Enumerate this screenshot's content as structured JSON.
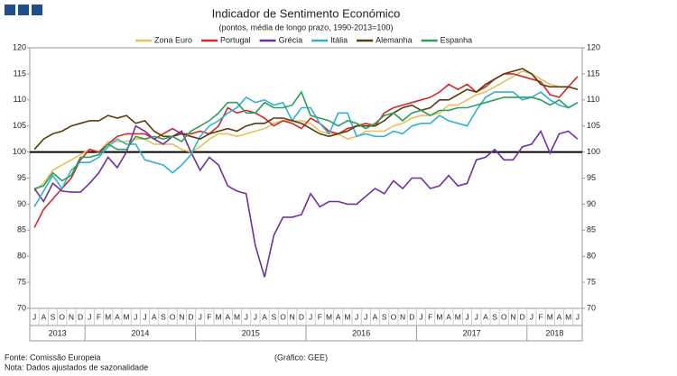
{
  "chart_data": {
    "type": "line",
    "title": "Indicador de Sentimento Económico",
    "subtitle": "(pontos, média de longo prazo, 1990-2013=100)",
    "categories": [
      "J",
      "A",
      "S",
      "O",
      "N",
      "D",
      "J",
      "F",
      "M",
      "A",
      "M",
      "J",
      "J",
      "A",
      "S",
      "O",
      "N",
      "D",
      "J",
      "F",
      "M",
      "A",
      "M",
      "J",
      "J",
      "A",
      "S",
      "O",
      "N",
      "D",
      "J",
      "F",
      "M",
      "A",
      "M",
      "J",
      "J",
      "A",
      "S",
      "O",
      "N",
      "D",
      "J",
      "F",
      "M",
      "A",
      "M",
      "J",
      "J",
      "A",
      "S",
      "O",
      "N",
      "D",
      "J",
      "F",
      "M",
      "A",
      "M",
      "J"
    ],
    "years": [
      "2013",
      "2014",
      "2015",
      "2016",
      "2017",
      "2018"
    ],
    "series": [
      {
        "name": "Zona Euro",
        "color": "#e8c05a",
        "values": [
          92.5,
          94,
          96.5,
          97.5,
          98.5,
          99.5,
          100.5,
          100,
          102,
          102,
          102,
          102.5,
          102.5,
          101.5,
          101.5,
          101.5,
          100.5,
          100,
          101,
          102.5,
          103.5,
          103.5,
          103,
          103.5,
          104,
          104.5,
          105.5,
          106,
          106,
          106,
          105.5,
          104,
          103.5,
          103.5,
          102.5,
          103,
          104,
          104,
          104,
          105,
          105.5,
          106.5,
          107,
          107,
          107.5,
          109,
          109,
          110,
          111,
          111.5,
          112.5,
          113.5,
          114.5,
          115.5,
          115,
          114,
          113,
          112.5,
          112.5,
          112
        ]
      },
      {
        "name": "Portugal",
        "color": "#d62828",
        "values": [
          85.5,
          89,
          91,
          93,
          95,
          98.5,
          100.5,
          100,
          101.5,
          103,
          103.5,
          103.5,
          103.5,
          102.5,
          103.5,
          104.5,
          103.5,
          103.5,
          104,
          103.5,
          105,
          108.5,
          107.5,
          108,
          107.5,
          106.5,
          105,
          106,
          105.5,
          104.5,
          106.5,
          105.5,
          104,
          103.5,
          104.5,
          105,
          105.5,
          105,
          107.5,
          108.5,
          109,
          109.5,
          110,
          110.5,
          111.5,
          113,
          112,
          113,
          111.5,
          112.5,
          114,
          115,
          115,
          114.5,
          114,
          113.5,
          111,
          110.5,
          112.5,
          114.5
        ]
      },
      {
        "name": "Grécia",
        "color": "#7030a0",
        "values": [
          93,
          90.5,
          94,
          92.5,
          92.3,
          92.3,
          94,
          96,
          99,
          97,
          100,
          105,
          104,
          102.5,
          101.5,
          103,
          104,
          100,
          96.5,
          99,
          97.5,
          93.5,
          92.5,
          92,
          82,
          76,
          84,
          87.5,
          87.5,
          88,
          92,
          89.5,
          90.5,
          90.5,
          90,
          90,
          91.5,
          93,
          92,
          94.5,
          93,
          95,
          95,
          93,
          93.5,
          95.5,
          93.5,
          94,
          98.5,
          99,
          100.5,
          98.5,
          98.5,
          101,
          101.5,
          104,
          99.8,
          103.5,
          104,
          102.5
        ]
      },
      {
        "name": "Itália",
        "color": "#30b0d8",
        "values": [
          89.5,
          92.5,
          95.5,
          93,
          96.5,
          98,
          98,
          99,
          101,
          102.5,
          101.5,
          101.5,
          98.5,
          98,
          97.5,
          96,
          97.5,
          99.5,
          103,
          105,
          106,
          107.5,
          108.5,
          110.5,
          109.5,
          110,
          109,
          109.5,
          106,
          108.5,
          108.5,
          105.5,
          103.5,
          107.5,
          107.5,
          103,
          103.5,
          103,
          103,
          104,
          103.5,
          105,
          105.5,
          105.5,
          107,
          106,
          105.5,
          105,
          108,
          110.5,
          111.5,
          111.5,
          111.5,
          110,
          110.5,
          111.5,
          110,
          109,
          108.5,
          109.5
        ]
      },
      {
        "name": "Alemanha",
        "color": "#5a3a10",
        "values": [
          100.5,
          102.5,
          103.5,
          104,
          105,
          105.5,
          106,
          106,
          107,
          106.5,
          107,
          105.5,
          106,
          104,
          103,
          103,
          103.5,
          103,
          102.5,
          103.5,
          104,
          104.5,
          104,
          105,
          105.5,
          105.5,
          106.5,
          106.5,
          106,
          105.5,
          104.5,
          103.5,
          103,
          103.5,
          104,
          105,
          105,
          105,
          106,
          107.5,
          108.5,
          109,
          108,
          108.5,
          110,
          110,
          111,
          112,
          111.5,
          113,
          114,
          115,
          115.5,
          116,
          115,
          113,
          112.5,
          112.5,
          112.5,
          112
        ]
      },
      {
        "name": "Espanha",
        "color": "#2aa05a",
        "values": [
          93,
          93.5,
          96,
          94.5,
          95.5,
          99,
          99,
          99.5,
          101.5,
          100.5,
          100.5,
          103,
          102.5,
          103,
          102.5,
          103,
          102,
          104,
          105,
          106,
          107.5,
          109.5,
          109.5,
          107.5,
          107.5,
          109.5,
          108.5,
          108.5,
          109,
          111.5,
          107,
          106.5,
          106,
          105,
          106,
          105.5,
          104.5,
          105.5,
          107,
          107.5,
          106,
          107.5,
          108,
          107,
          108,
          108,
          108.5,
          108.5,
          109,
          109.5,
          110,
          110.5,
          110.5,
          110.5,
          110.5,
          110,
          109,
          110,
          108.5,
          109.5
        ]
      }
    ],
    "ylim": [
      70,
      120
    ],
    "yticks": [
      70,
      75,
      80,
      85,
      90,
      95,
      100,
      105,
      110,
      115,
      120
    ],
    "reference_line": 100,
    "source": "Fonte: Comissão Europeia",
    "note": "Nota: Dados ajustados de sazonalidade",
    "credit": "(Gráfico: GEE)"
  }
}
